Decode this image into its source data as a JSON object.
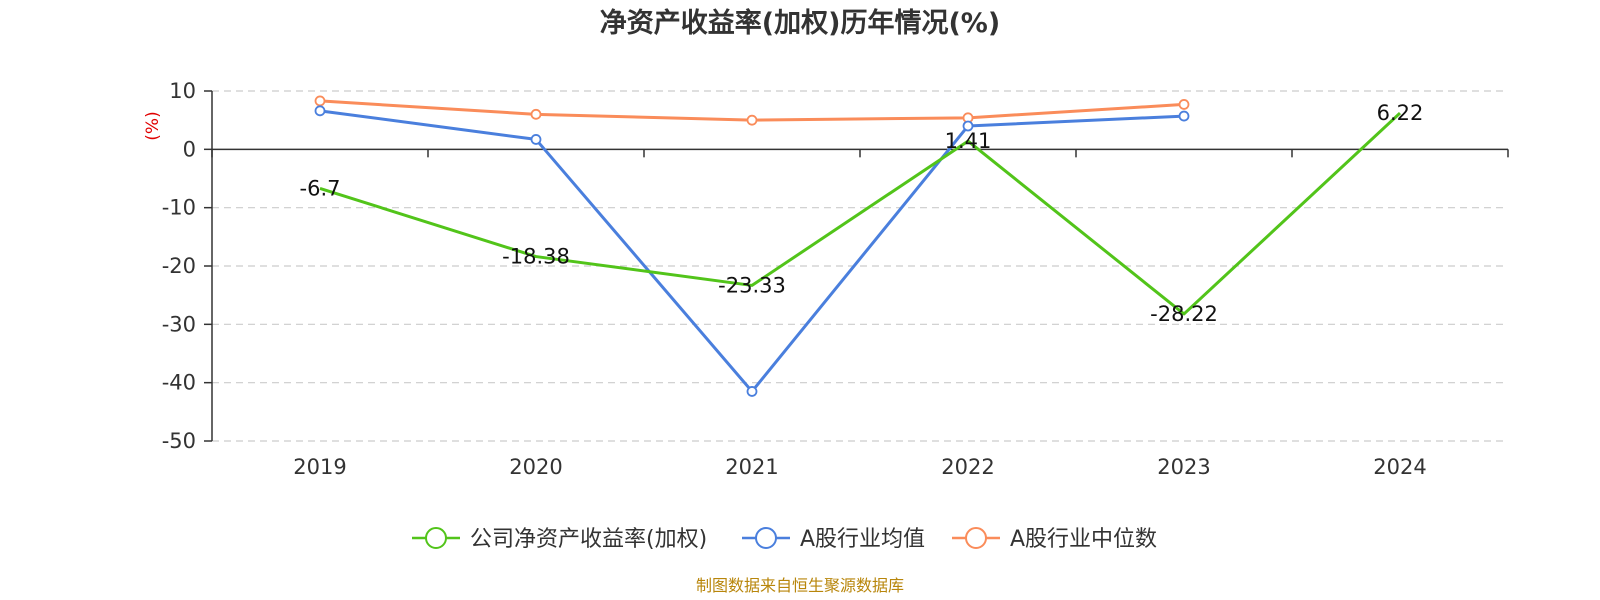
{
  "chart_data": {
    "type": "line",
    "title": "净资产收益率(加权)历年情况(%)",
    "ylabel": "(%)",
    "categories": [
      "2019",
      "2020",
      "2021",
      "2022",
      "2023",
      "2024"
    ],
    "ylim": [
      -50,
      10
    ],
    "yticks": [
      10,
      0,
      -10,
      -20,
      -30,
      -40,
      -50
    ],
    "grid": true,
    "legend_position": "bottom",
    "series": [
      {
        "name": "公司净资产收益率(加权)",
        "color": "#52c41a",
        "values": [
          -6.7,
          -18.38,
          -23.33,
          1.41,
          -28.22,
          6.22
        ],
        "labels": [
          "-6.7",
          "-18.38",
          "-23.33",
          "1.41",
          "-28.22",
          "6.22"
        ]
      },
      {
        "name": "A股行业均值",
        "color": "#4a7fdd",
        "values": [
          6.6,
          1.7,
          -41.5,
          4.0,
          5.7,
          null
        ]
      },
      {
        "name": "A股行业中位数",
        "color": "#fa8c5a",
        "values": [
          8.3,
          6.0,
          5.0,
          5.4,
          7.7,
          null
        ]
      }
    ]
  },
  "footer": {
    "source": "制图数据来自恒生聚源数据库"
  }
}
